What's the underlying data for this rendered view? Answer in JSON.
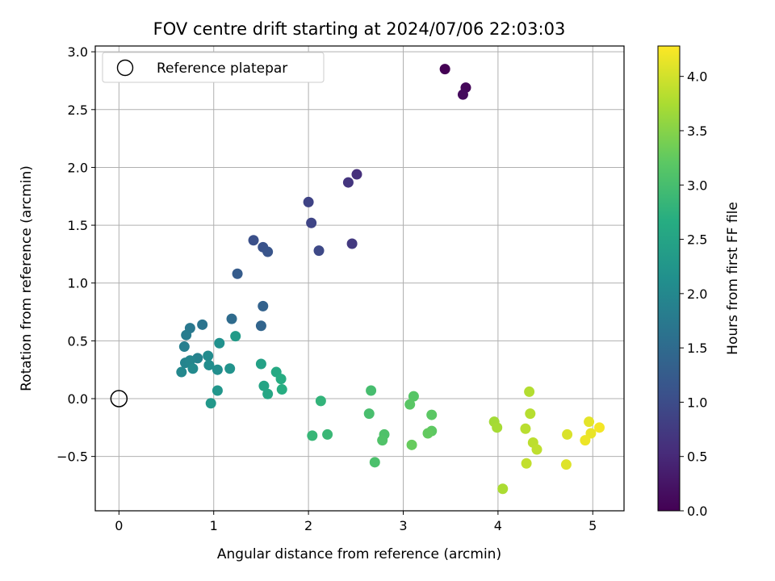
{
  "chart_data": {
    "type": "scatter",
    "title": "FOV centre drift starting at 2024/07/06 22:03:03",
    "xlabel": "Angular distance from reference (arcmin)",
    "ylabel": "Rotation from reference (arcmin)",
    "xlim": [
      -0.25,
      5.33
    ],
    "ylim": [
      -0.97,
      3.05
    ],
    "xticks": [
      0,
      1,
      2,
      3,
      4,
      5
    ],
    "xtick_labels": [
      "0",
      "1",
      "2",
      "3",
      "4",
      "5"
    ],
    "yticks": [
      -0.5,
      0.0,
      0.5,
      1.0,
      1.5,
      2.0,
      2.5,
      3.0
    ],
    "ytick_labels": [
      "−0.5",
      "0.0",
      "0.5",
      "1.0",
      "1.5",
      "2.0",
      "2.5",
      "3.0"
    ],
    "grid": true,
    "legend": {
      "placement": "upper-left",
      "entries": [
        {
          "label": "Reference platepar",
          "marker": "open-circle",
          "color": "#000000"
        }
      ]
    },
    "colorbar": {
      "label": "Hours from first FF file",
      "colormap": "viridis",
      "range": [
        0.0,
        4.28
      ],
      "ticks": [
        0.0,
        0.5,
        1.0,
        1.5,
        2.0,
        2.5,
        3.0,
        3.5,
        4.0
      ],
      "tick_labels": [
        "0.0",
        "0.5",
        "1.0",
        "1.5",
        "2.0",
        "2.5",
        "3.0",
        "3.5",
        "4.0"
      ]
    },
    "reference_point": {
      "x": 0,
      "y": 0
    },
    "series": [
      {
        "points": [
          {
            "x": 3.44,
            "y": 2.85,
            "c": 0.0
          },
          {
            "x": 3.66,
            "y": 2.69,
            "c": 0.07
          },
          {
            "x": 3.63,
            "y": 2.63,
            "c": 0.13
          },
          {
            "x": 2.51,
            "y": 1.94,
            "c": 0.6
          },
          {
            "x": 2.42,
            "y": 1.87,
            "c": 0.67
          },
          {
            "x": 2.46,
            "y": 1.34,
            "c": 0.73
          },
          {
            "x": 2.0,
            "y": 1.7,
            "c": 0.87
          },
          {
            "x": 2.03,
            "y": 1.52,
            "c": 0.9
          },
          {
            "x": 2.11,
            "y": 1.28,
            "c": 0.95
          },
          {
            "x": 1.42,
            "y": 1.37,
            "c": 1.05
          },
          {
            "x": 1.52,
            "y": 1.31,
            "c": 1.1
          },
          {
            "x": 1.57,
            "y": 1.27,
            "c": 1.13
          },
          {
            "x": 1.25,
            "y": 1.08,
            "c": 1.25
          },
          {
            "x": 1.52,
            "y": 0.8,
            "c": 1.35
          },
          {
            "x": 1.5,
            "y": 0.63,
            "c": 1.4
          },
          {
            "x": 1.19,
            "y": 0.69,
            "c": 1.5
          },
          {
            "x": 0.88,
            "y": 0.64,
            "c": 1.65
          },
          {
            "x": 0.75,
            "y": 0.61,
            "c": 1.73
          },
          {
            "x": 0.71,
            "y": 0.55,
            "c": 1.8
          },
          {
            "x": 0.69,
            "y": 0.45,
            "c": 1.85
          },
          {
            "x": 0.83,
            "y": 0.35,
            "c": 1.9
          },
          {
            "x": 0.7,
            "y": 0.31,
            "c": 1.93
          },
          {
            "x": 0.75,
            "y": 0.33,
            "c": 1.96
          },
          {
            "x": 0.66,
            "y": 0.23,
            "c": 2.0
          },
          {
            "x": 0.78,
            "y": 0.26,
            "c": 2.03
          },
          {
            "x": 0.94,
            "y": 0.37,
            "c": 2.05
          },
          {
            "x": 0.95,
            "y": 0.29,
            "c": 2.08
          },
          {
            "x": 1.04,
            "y": 0.25,
            "c": 2.1
          },
          {
            "x": 1.06,
            "y": 0.48,
            "c": 2.15
          },
          {
            "x": 1.17,
            "y": 0.26,
            "c": 2.2
          },
          {
            "x": 1.04,
            "y": 0.07,
            "c": 2.25
          },
          {
            "x": 0.97,
            "y": -0.04,
            "c": 2.28
          },
          {
            "x": 1.23,
            "y": 0.54,
            "c": 2.35
          },
          {
            "x": 1.5,
            "y": 0.3,
            "c": 2.45
          },
          {
            "x": 1.53,
            "y": 0.11,
            "c": 2.5
          },
          {
            "x": 1.57,
            "y": 0.04,
            "c": 2.55
          },
          {
            "x": 1.66,
            "y": 0.23,
            "c": 2.6
          },
          {
            "x": 1.71,
            "y": 0.17,
            "c": 2.65
          },
          {
            "x": 1.72,
            "y": 0.08,
            "c": 2.68
          },
          {
            "x": 2.13,
            "y": -0.02,
            "c": 2.8
          },
          {
            "x": 2.04,
            "y": -0.32,
            "c": 2.85
          },
          {
            "x": 2.2,
            "y": -0.31,
            "c": 2.88
          },
          {
            "x": 2.66,
            "y": 0.07,
            "c": 3.0
          },
          {
            "x": 2.64,
            "y": -0.13,
            "c": 3.02
          },
          {
            "x": 2.7,
            "y": -0.55,
            "c": 3.05
          },
          {
            "x": 2.8,
            "y": -0.31,
            "c": 3.08
          },
          {
            "x": 2.78,
            "y": -0.36,
            "c": 3.1
          },
          {
            "x": 3.11,
            "y": 0.02,
            "c": 3.15
          },
          {
            "x": 3.07,
            "y": -0.05,
            "c": 3.18
          },
          {
            "x": 3.3,
            "y": -0.14,
            "c": 3.2
          },
          {
            "x": 3.3,
            "y": -0.28,
            "c": 3.22
          },
          {
            "x": 3.26,
            "y": -0.3,
            "c": 3.25
          },
          {
            "x": 3.09,
            "y": -0.4,
            "c": 3.28
          },
          {
            "x": 3.96,
            "y": -0.2,
            "c": 3.7
          },
          {
            "x": 3.99,
            "y": -0.25,
            "c": 3.72
          },
          {
            "x": 4.05,
            "y": -0.78,
            "c": 3.75
          },
          {
            "x": 4.33,
            "y": 0.06,
            "c": 3.8
          },
          {
            "x": 4.34,
            "y": -0.13,
            "c": 3.82
          },
          {
            "x": 4.29,
            "y": -0.26,
            "c": 3.84
          },
          {
            "x": 4.37,
            "y": -0.38,
            "c": 3.86
          },
          {
            "x": 4.41,
            "y": -0.44,
            "c": 3.88
          },
          {
            "x": 4.3,
            "y": -0.56,
            "c": 3.9
          },
          {
            "x": 4.73,
            "y": -0.31,
            "c": 4.05
          },
          {
            "x": 4.72,
            "y": -0.57,
            "c": 4.08
          },
          {
            "x": 4.96,
            "y": -0.2,
            "c": 4.12
          },
          {
            "x": 4.98,
            "y": -0.3,
            "c": 4.15
          },
          {
            "x": 4.92,
            "y": -0.36,
            "c": 4.18
          },
          {
            "x": 5.07,
            "y": -0.25,
            "c": 4.22
          }
        ]
      }
    ]
  }
}
